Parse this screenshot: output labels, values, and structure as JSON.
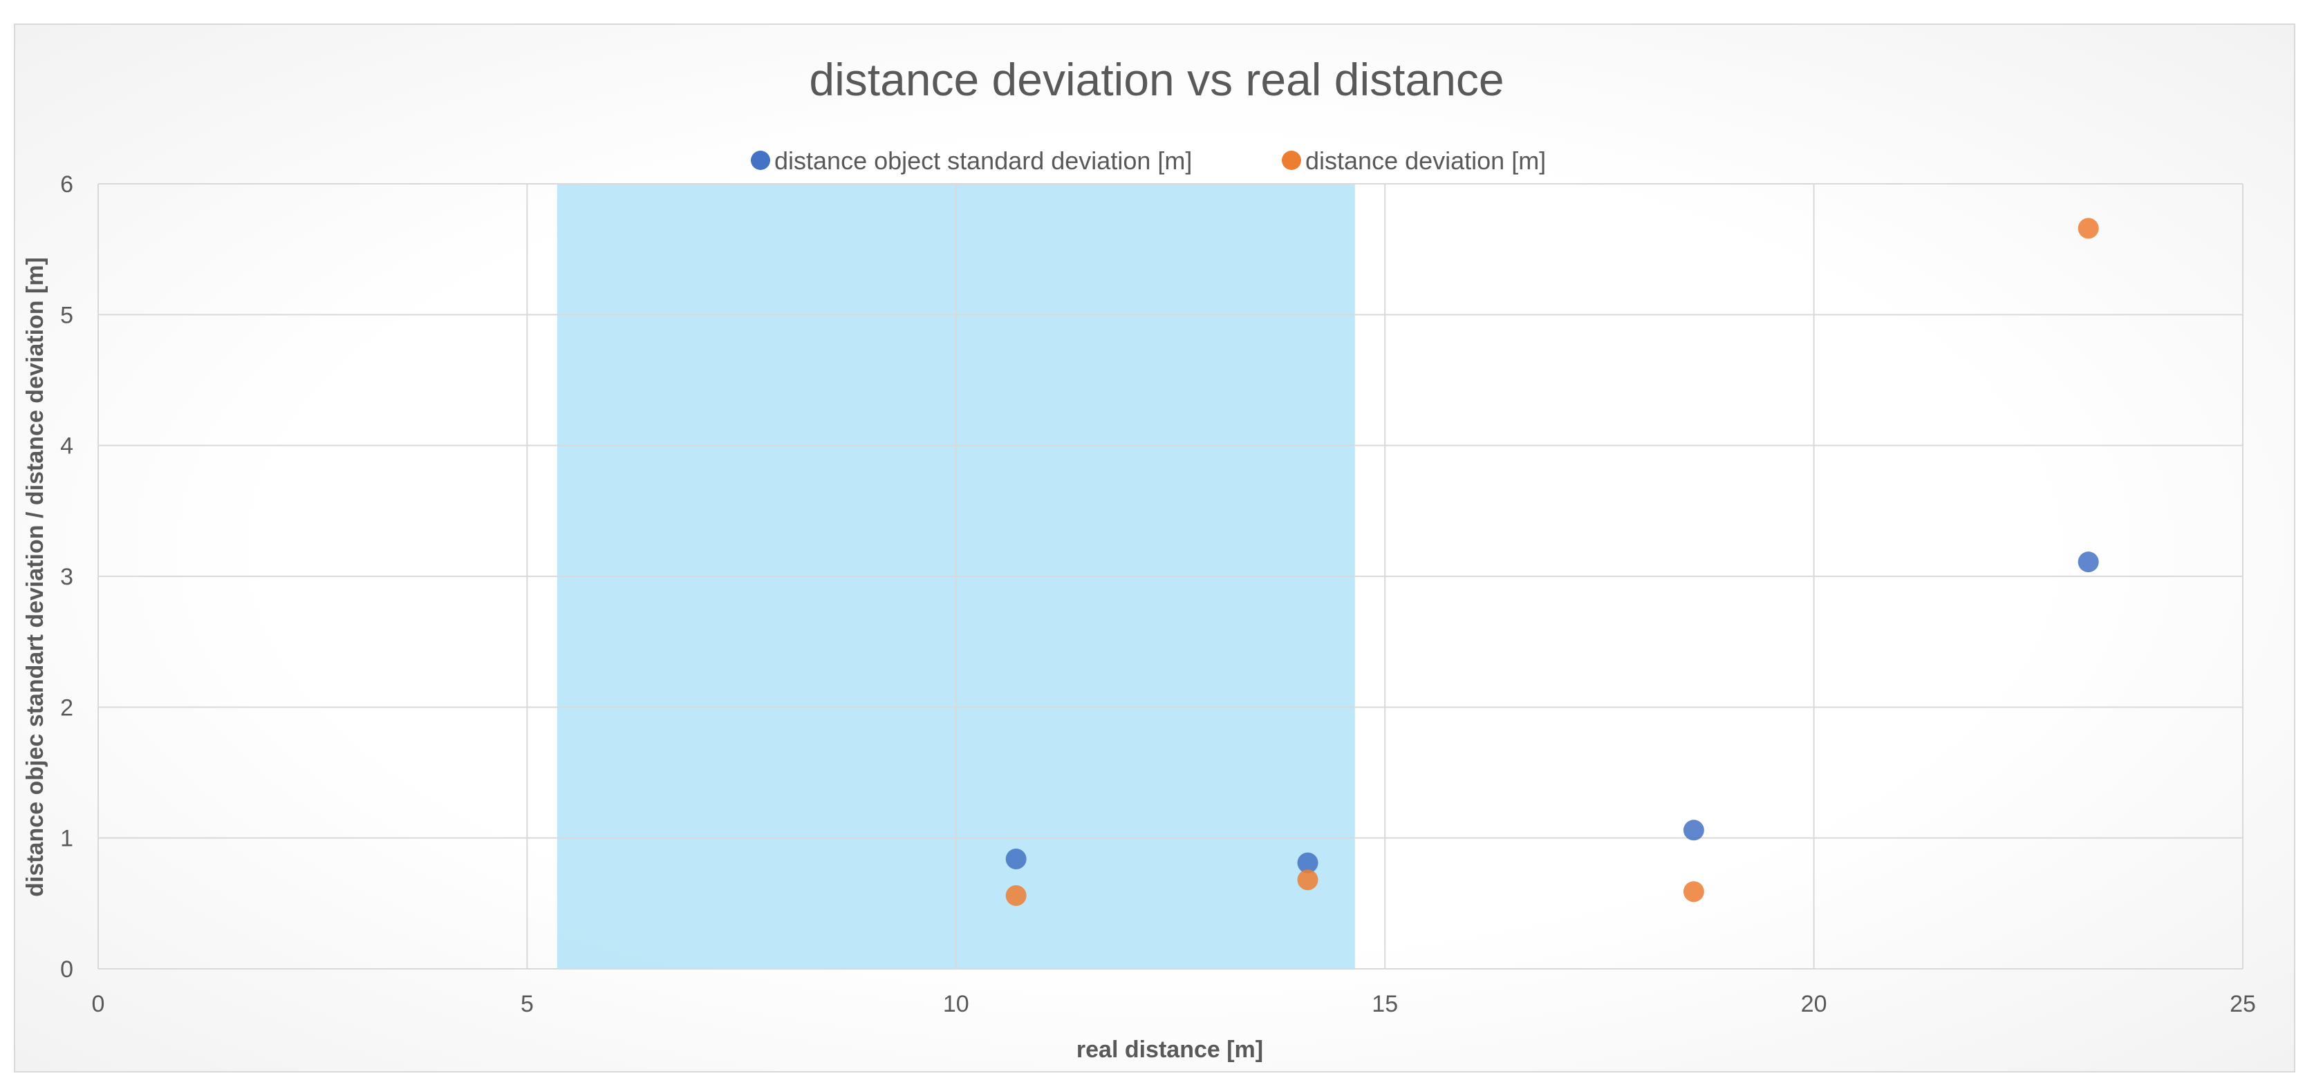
{
  "chart_data": {
    "type": "scatter",
    "title": "distance deviation vs real distance",
    "xlabel": "real distance [m]",
    "ylabel": "distance objec standart deviation / distance deviation [m]",
    "xlim": [
      0,
      25
    ],
    "ylim": [
      0,
      6
    ],
    "x_ticks": [
      "0",
      "5",
      "10",
      "15",
      "20",
      "25"
    ],
    "y_ticks": [
      "0",
      "1",
      "2",
      "3",
      "4",
      "5",
      "6"
    ],
    "grid": true,
    "legend_position": "top",
    "highlight_band": {
      "x_from": 5.35,
      "x_to": 14.65,
      "color": "#a8e0f7"
    },
    "series": [
      {
        "name": "distance object standard deviation [m]",
        "color": "#4472c4",
        "x": [
          10.7,
          14.1,
          18.6,
          23.2
        ],
        "y": [
          0.84,
          0.81,
          1.06,
          3.11
        ]
      },
      {
        "name": "distance deviation [m]",
        "color": "#ed7d31",
        "x": [
          10.7,
          14.1,
          18.6,
          23.2
        ],
        "y": [
          0.56,
          0.68,
          0.59,
          5.66
        ]
      }
    ]
  }
}
